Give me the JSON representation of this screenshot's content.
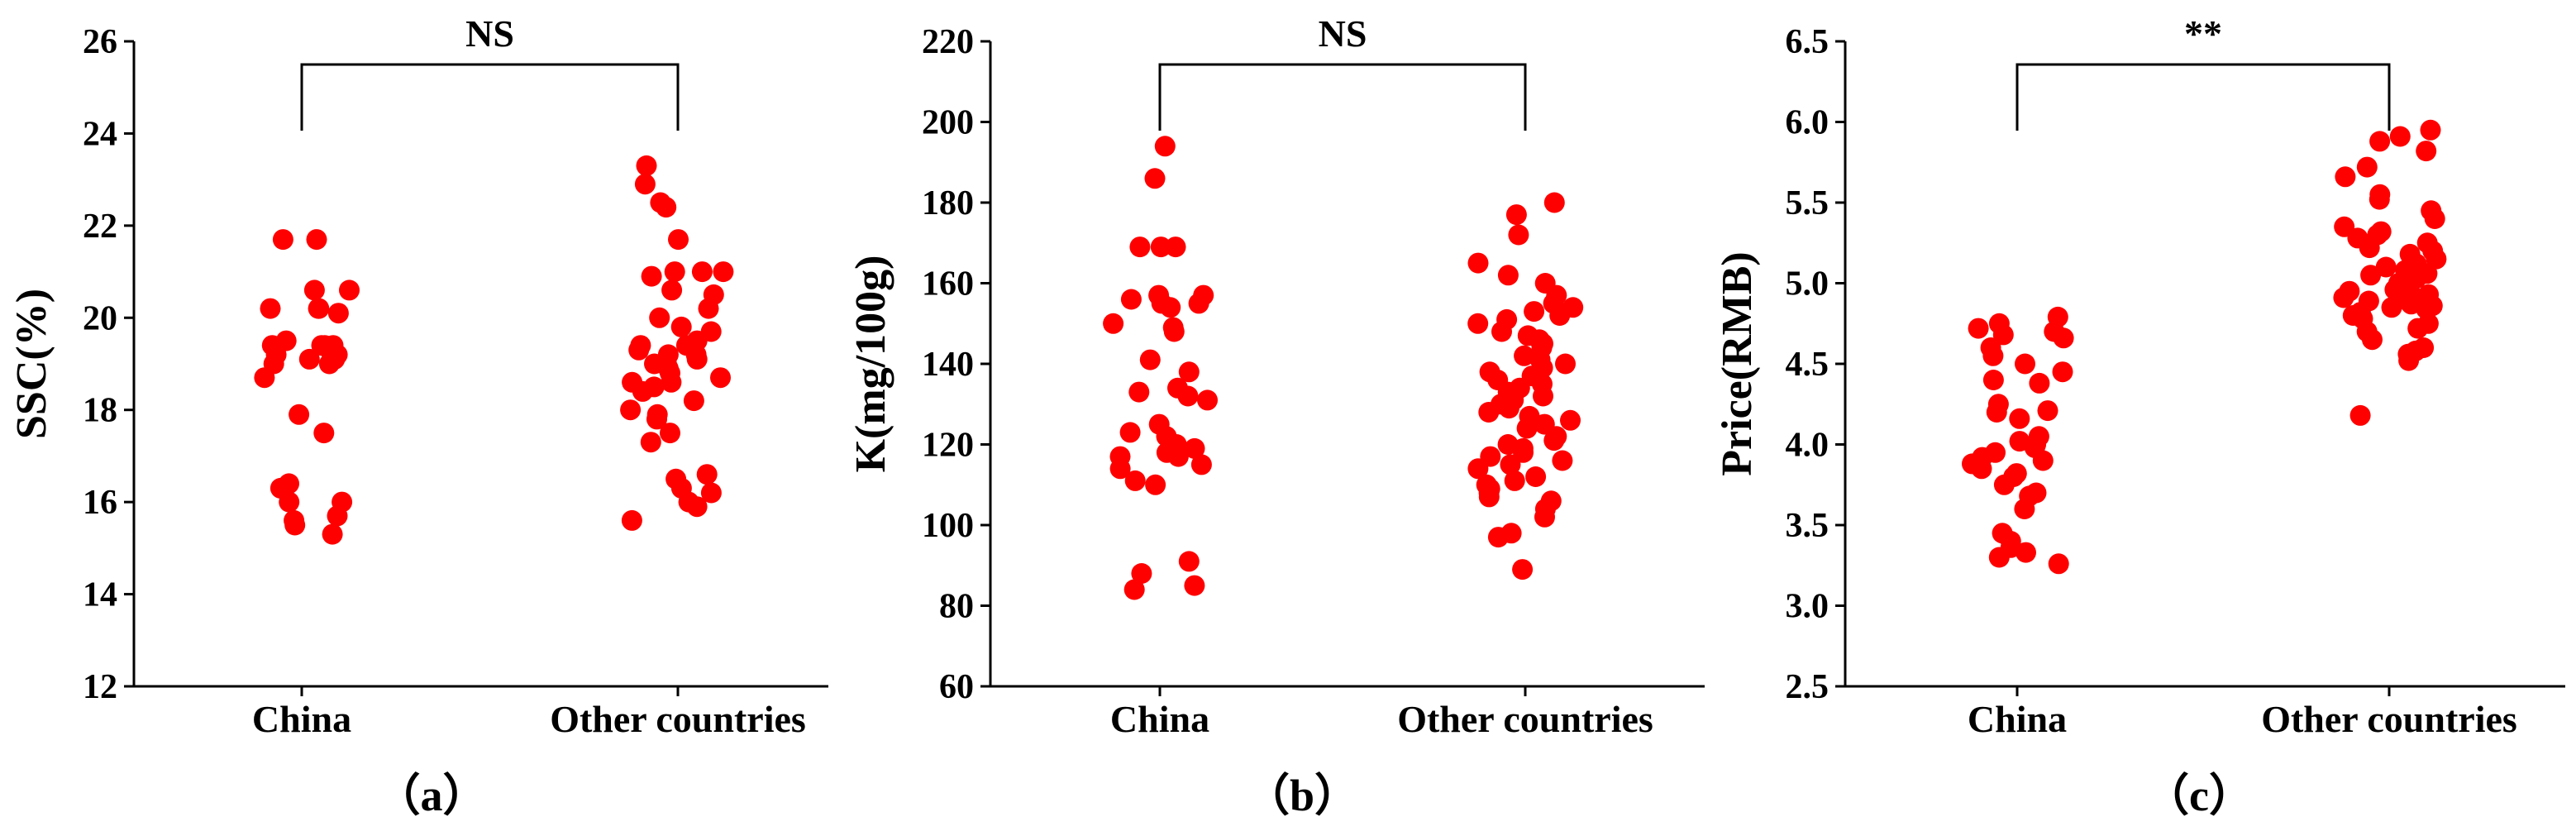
{
  "figure": {
    "panel_labels": [
      "（a）",
      "（b）",
      "（c）"
    ]
  },
  "chart_data": [
    {
      "type": "scatter",
      "xlabel": "",
      "ylabel": "SSC(%)",
      "categories": [
        "China",
        "Other countries"
      ],
      "ylim": [
        12,
        26
      ],
      "yticks": [
        12,
        14,
        16,
        18,
        20,
        22,
        24,
        26
      ],
      "grid": false,
      "significance": "NS",
      "color": "#ff0000",
      "series": [
        {
          "category": "China",
          "values": [
            21.7,
            21.7,
            20.6,
            20.6,
            20.2,
            20.2,
            20.2,
            20.1,
            19.4,
            19.4,
            19.4,
            19.5,
            19.3,
            19.4,
            19.1,
            19.2,
            19.0,
            19.0,
            19.2,
            19.1,
            18.7,
            17.9,
            17.5,
            16.4,
            16.3,
            16.0,
            16.0,
            15.7,
            15.6,
            15.5,
            15.3
          ]
        },
        {
          "category": "Other countries",
          "values": [
            23.3,
            22.9,
            22.5,
            22.4,
            21.7,
            21.0,
            21.0,
            21.0,
            20.9,
            20.6,
            20.5,
            20.2,
            20.0,
            19.8,
            19.7,
            19.5,
            19.4,
            19.4,
            19.3,
            19.2,
            19.2,
            19.1,
            19.0,
            19.0,
            18.9,
            18.8,
            18.7,
            18.6,
            18.6,
            18.5,
            18.4,
            18.2,
            18.0,
            17.9,
            17.8,
            17.5,
            17.3,
            16.6,
            16.5,
            16.3,
            16.2,
            16.0,
            15.9,
            15.6
          ]
        }
      ]
    },
    {
      "type": "scatter",
      "xlabel": "",
      "ylabel": "K(mg/100g)",
      "categories": [
        "China",
        "Other countries"
      ],
      "ylim": [
        60,
        220
      ],
      "yticks": [
        60,
        80,
        100,
        120,
        140,
        160,
        180,
        200,
        220
      ],
      "grid": false,
      "significance": "NS",
      "color": "#ff0000",
      "series": [
        {
          "category": "China",
          "values": [
            194,
            186,
            169,
            169,
            169,
            157,
            157,
            156,
            155,
            155,
            154,
            150,
            149,
            148,
            141,
            138,
            134,
            133,
            132,
            131,
            125,
            123,
            122,
            120,
            119,
            118,
            117,
            117,
            115,
            114,
            111,
            110,
            91,
            88,
            85,
            84
          ]
        },
        {
          "category": "Other countries",
          "values": [
            180,
            177,
            172,
            165,
            162,
            160,
            157,
            155,
            154,
            153,
            152,
            151,
            150,
            148,
            147,
            146,
            145,
            144,
            142,
            141,
            140,
            139,
            138,
            137,
            136,
            135,
            134,
            133,
            132,
            132,
            131,
            130,
            129,
            128,
            127,
            126,
            125,
            124,
            122,
            121,
            120,
            119,
            118,
            117,
            116,
            115,
            114,
            112,
            111,
            110,
            109,
            108,
            107,
            106,
            104,
            102,
            98,
            97,
            89
          ]
        }
      ]
    },
    {
      "type": "scatter",
      "xlabel": "",
      "ylabel": "Price(RMB)",
      "categories": [
        "China",
        "Other countries"
      ],
      "ylim": [
        2.5,
        6.5
      ],
      "yticks": [
        2.5,
        3.0,
        3.5,
        4.0,
        4.5,
        5.0,
        5.5,
        6.0,
        6.5
      ],
      "yticklabels": [
        "2.5",
        "3.0",
        "3.5",
        "4.0",
        "4.5",
        "5.0",
        "5.5",
        "6.0",
        "6.5"
      ],
      "grid": false,
      "significance": "**",
      "color": "#ff0000",
      "series": [
        {
          "category": "China",
          "values": [
            4.79,
            4.75,
            4.72,
            4.7,
            4.68,
            4.66,
            4.6,
            4.55,
            4.5,
            4.45,
            4.4,
            4.38,
            4.25,
            4.21,
            4.2,
            4.16,
            4.05,
            4.02,
            4.0,
            3.98,
            3.95,
            3.92,
            3.9,
            3.88,
            3.85,
            3.82,
            3.8,
            3.75,
            3.7,
            3.68,
            3.6,
            3.45,
            3.4,
            3.36,
            3.33,
            3.3,
            3.26
          ]
        },
        {
          "category": "Other countries",
          "values": [
            5.95,
            5.91,
            5.88,
            5.82,
            5.72,
            5.66,
            5.55,
            5.52,
            5.45,
            5.4,
            5.35,
            5.32,
            5.3,
            5.28,
            5.25,
            5.22,
            5.2,
            5.18,
            5.15,
            5.12,
            5.1,
            5.08,
            5.06,
            5.05,
            5.03,
            5.0,
            4.98,
            4.96,
            4.95,
            4.93,
            4.92,
            4.91,
            4.9,
            4.89,
            4.88,
            4.87,
            4.86,
            4.85,
            4.84,
            4.82,
            4.8,
            4.78,
            4.75,
            4.72,
            4.7,
            4.65,
            4.6,
            4.58,
            4.56,
            4.52,
            4.18
          ]
        }
      ]
    }
  ]
}
